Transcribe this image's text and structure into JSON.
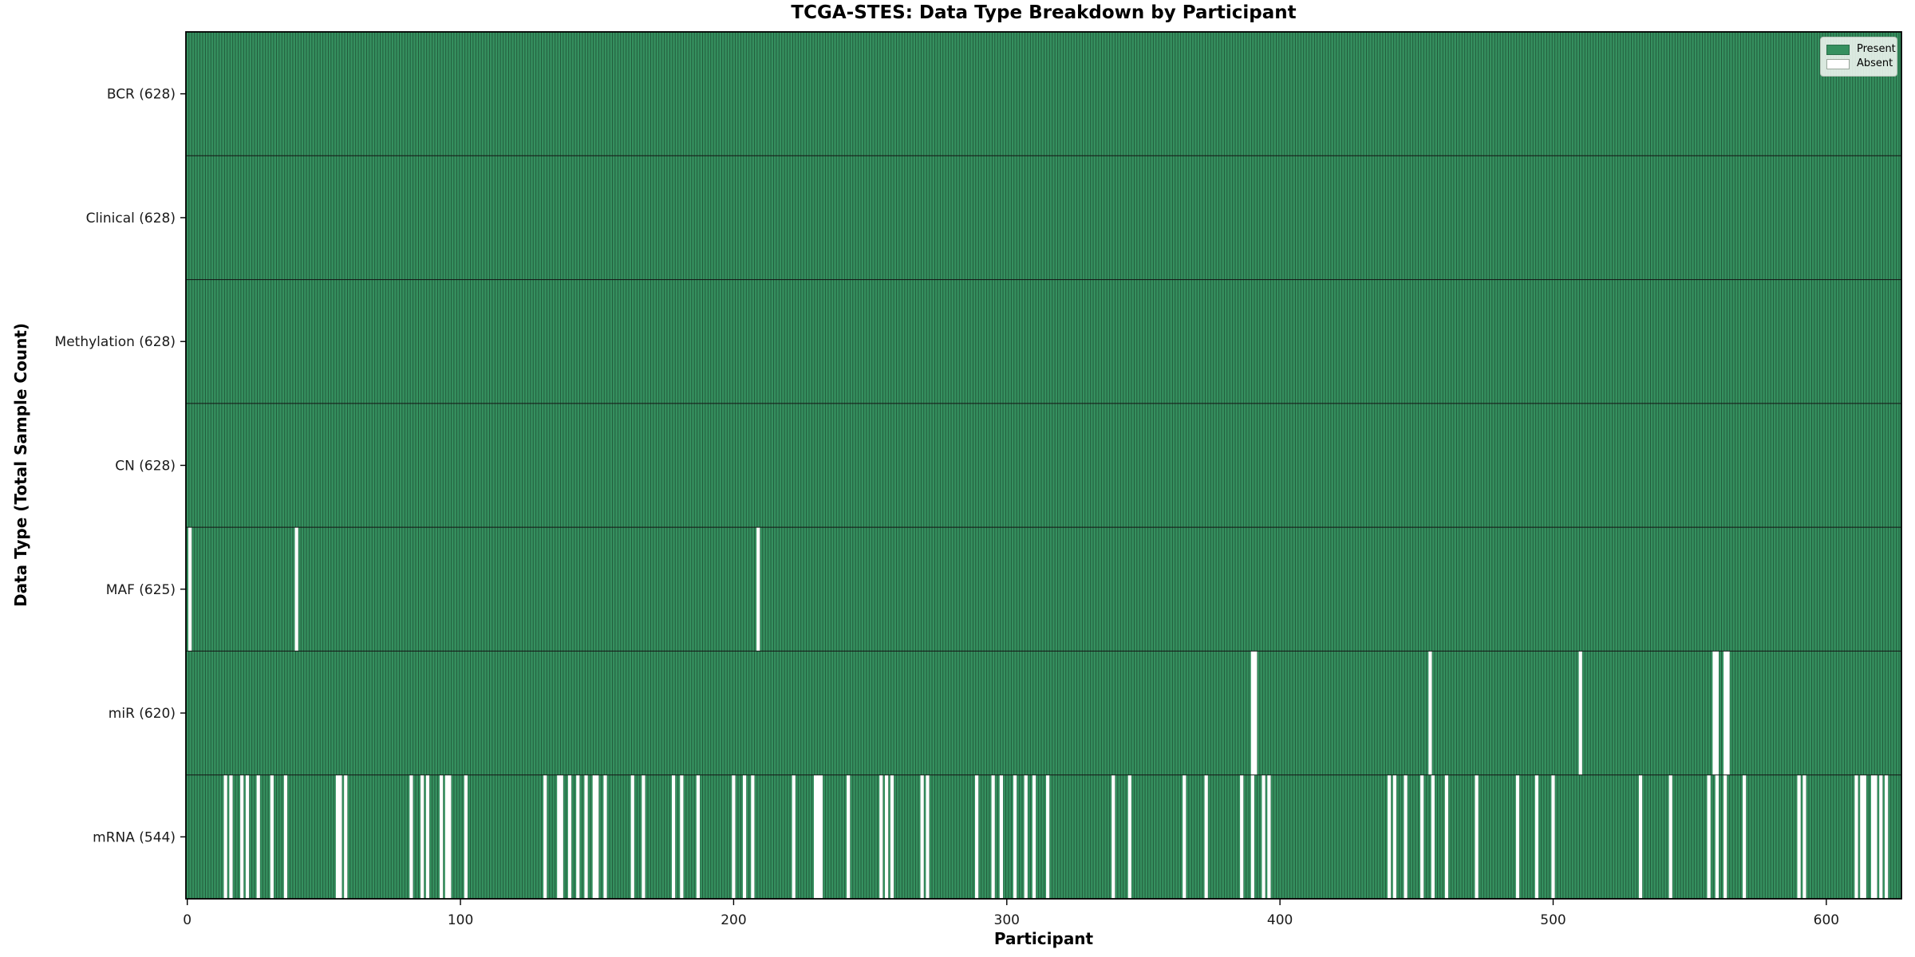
{
  "figure": {
    "title": "TCGA-STES: Data Type Breakdown by Participant",
    "xlabel": "Participant",
    "ylabel": "Data Type (Total Sample Count)"
  },
  "legend": {
    "items": [
      {
        "label": "Present",
        "color": "#35905f"
      },
      {
        "label": "Absent",
        "color": "#ffffff"
      }
    ]
  },
  "chart_data": {
    "type": "heatmap",
    "title": "TCGA-STES: Data Type Breakdown by Participant",
    "xlabel": "Participant",
    "ylabel": "Data Type (Total Sample Count)",
    "x_ticks": [
      0,
      100,
      200,
      300,
      400,
      500,
      600
    ],
    "xlim": [
      -0.5,
      627.5
    ],
    "n_participants": 628,
    "grid": false,
    "legend_position": "upper right",
    "colors": {
      "present": "#35905f",
      "absent": "#ffffff",
      "bar_edge": "#1d4f33",
      "row_divider": "#141414",
      "spine": "#000000",
      "tick_text": "#1a1a1a"
    },
    "rows": [
      {
        "label": "BCR",
        "count": 628,
        "tick_label": "BCR (628)",
        "absent_participants": []
      },
      {
        "label": "Clinical",
        "count": 628,
        "tick_label": "Clinical (628)",
        "absent_participants": []
      },
      {
        "label": "Methylation",
        "count": 628,
        "tick_label": "Methylation (628)",
        "absent_participants": []
      },
      {
        "label": "CN",
        "count": 628,
        "tick_label": "CN (628)",
        "absent_participants": []
      },
      {
        "label": "MAF",
        "count": 625,
        "tick_label": "MAF (625)",
        "absent_participants": [
          1,
          40,
          209
        ]
      },
      {
        "label": "miR",
        "count": 620,
        "tick_label": "miR (620)",
        "absent_participants": [
          390,
          391,
          455,
          510,
          559,
          560,
          563,
          564
        ]
      },
      {
        "label": "mRNA",
        "count": 544,
        "tick_label": "mRNA (544)",
        "absent_participants": [
          14,
          16,
          20,
          22,
          26,
          31,
          36,
          55,
          56,
          58,
          82,
          86,
          88,
          93,
          95,
          96,
          102,
          131,
          136,
          137,
          140,
          143,
          146,
          149,
          150,
          153,
          163,
          167,
          178,
          181,
          187,
          200,
          204,
          207,
          222,
          230,
          231,
          232,
          242,
          254,
          256,
          258,
          269,
          271,
          289,
          295,
          298,
          303,
          307,
          310,
          315,
          339,
          345,
          365,
          373,
          386,
          390,
          394,
          396,
          440,
          442,
          446,
          452,
          456,
          461,
          472,
          487,
          494,
          500,
          532,
          543,
          557,
          560,
          563,
          570,
          590,
          592,
          611,
          613,
          614,
          617,
          618,
          620,
          622
        ]
      }
    ]
  }
}
